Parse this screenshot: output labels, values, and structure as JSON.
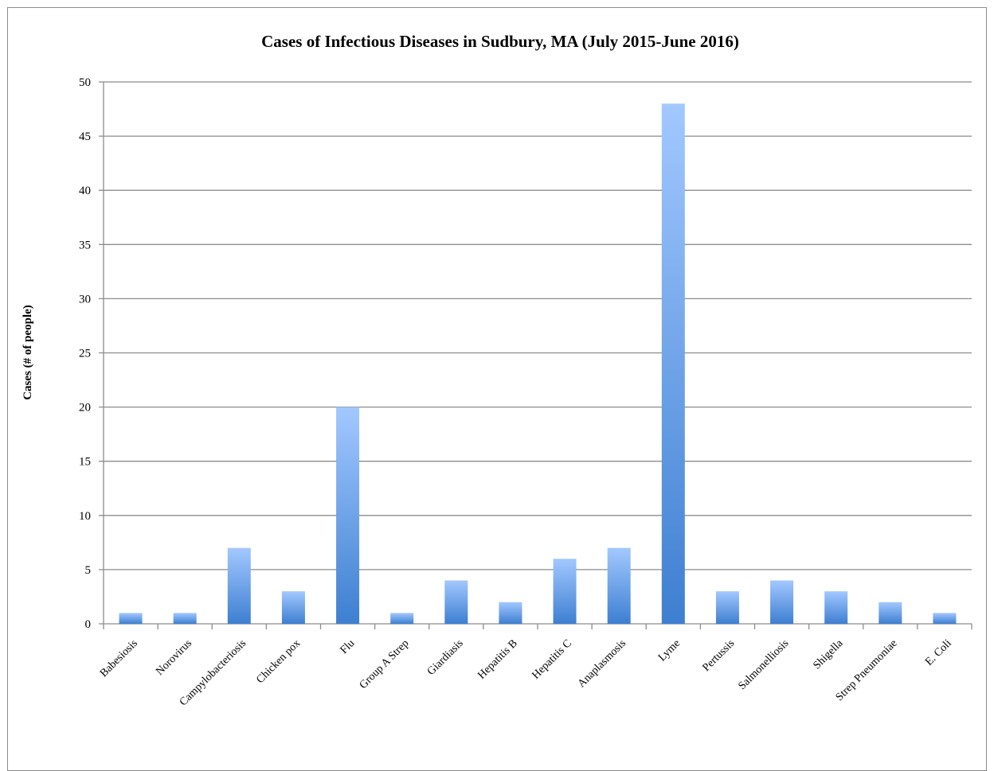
{
  "chart_data": {
    "type": "bar",
    "title": "Cases of Infectious Diseases in Sudbury, MA (July 2015-June 2016)",
    "xlabel": "",
    "ylabel": "Cases (# of people)",
    "ylim": [
      0,
      50
    ],
    "yticks": [
      0,
      5,
      10,
      15,
      20,
      25,
      30,
      35,
      40,
      45,
      50
    ],
    "grid": true,
    "legend": "none",
    "categories": [
      "Babesiosis",
      "Norovirus",
      "Campylobacteriosis",
      "Chicken pox",
      "Flu",
      "Group A Strep",
      "Giardiasis",
      "Hepatitis B",
      "Hepatitis C",
      "Anaplasmosis",
      "Lyme",
      "Pertussis",
      "Salmonelliosis",
      "Shigella",
      "Strep Pneumoniae",
      "E. Coli"
    ],
    "values": [
      1,
      1,
      7,
      3,
      20,
      1,
      4,
      2,
      6,
      7,
      48,
      3,
      4,
      3,
      2,
      1
    ],
    "colors": {
      "bar_top": "#a3c8ff",
      "bar_bottom": "#3d7fd1",
      "grid": "#8c8c8c",
      "axis": "#8c8c8c"
    }
  }
}
